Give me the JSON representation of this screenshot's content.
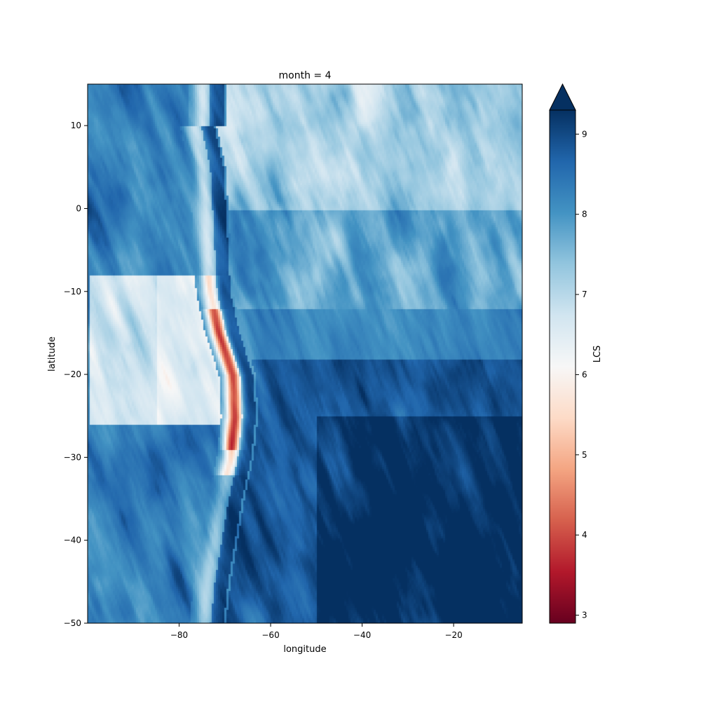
{
  "chart_data": {
    "type": "heatmap",
    "title": "month = 4",
    "xlabel": "longitude",
    "ylabel": "latitude",
    "xlim": [
      -100,
      -5
    ],
    "ylim": [
      -50,
      15
    ],
    "x_ticks": [
      -80,
      -60,
      -40,
      -20
    ],
    "y_ticks": [
      10,
      0,
      -10,
      -20,
      -30,
      -40,
      -50
    ],
    "colorbar": {
      "label": "LCS",
      "colormap": "RdBu",
      "vmin": 2.9,
      "vmax": 9.3,
      "extend": "max",
      "ticks": [
        3,
        4,
        5,
        6,
        7,
        8,
        9
      ]
    },
    "field_description_values": {
      "background_range": [
        6.5,
        9.3
      ],
      "ridge_min": 3.5,
      "ridge_path": [
        [
          -77,
          10
        ],
        [
          -75,
          5
        ],
        [
          -74.5,
          0
        ],
        [
          -74,
          -5
        ],
        [
          -73.5,
          -10
        ],
        [
          -71.5,
          -15
        ],
        [
          -68.5,
          -20
        ],
        [
          -68,
          -25
        ],
        [
          -69,
          -30
        ],
        [
          -71,
          -35
        ],
        [
          -72.5,
          -40
        ],
        [
          -74,
          -45
        ],
        [
          -75,
          -50
        ]
      ]
    }
  }
}
